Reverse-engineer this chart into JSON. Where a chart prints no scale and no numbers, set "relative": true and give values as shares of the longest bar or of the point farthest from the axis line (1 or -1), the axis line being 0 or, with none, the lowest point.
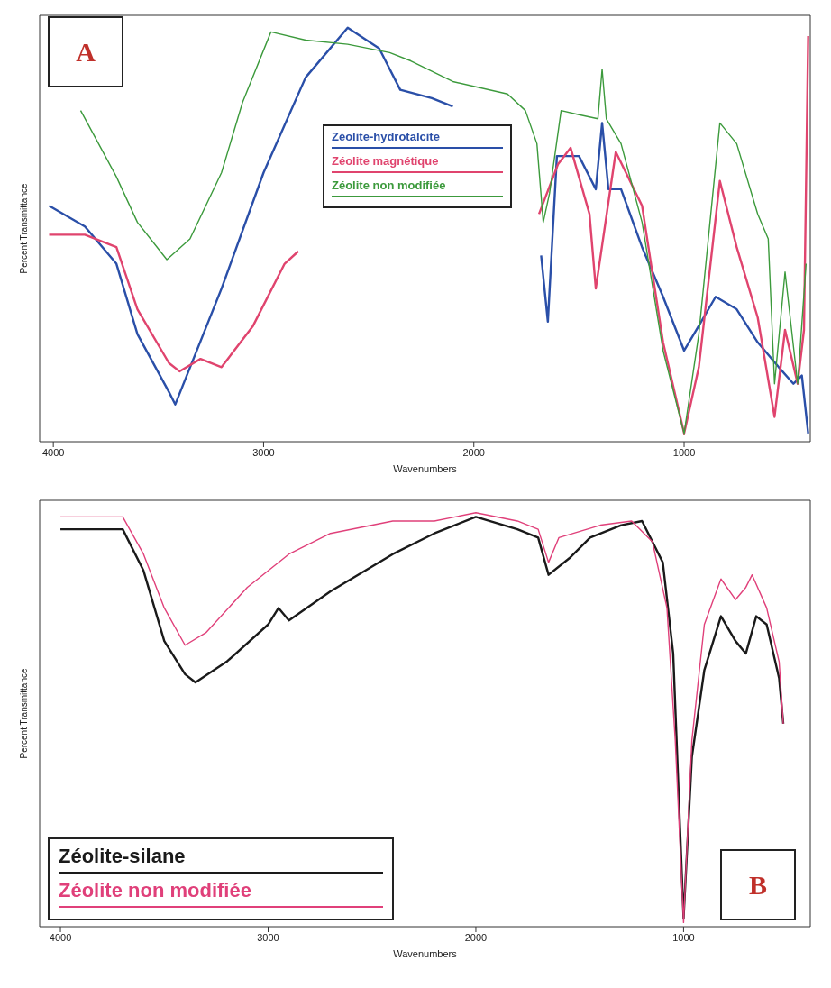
{
  "chart_data": [
    {
      "type": "line",
      "relative": true,
      "xlabel": "Wavenumbers",
      "ylabel": "Percent Transmittance",
      "xlim": [
        4065,
        400
      ],
      "xticks": [
        4000,
        3000,
        2000,
        1000
      ],
      "legend": "top",
      "annotations": [
        "A"
      ],
      "series": [
        {
          "name": "Zéolite-hydrotalcite",
          "color": "#2a4fa8",
          "x": [
            4020,
            3850,
            3700,
            3600,
            3450,
            3420,
            3200,
            3000,
            2800,
            2600,
            2450,
            2350,
            2200,
            2100,
            2000,
            1800,
            1680,
            1648,
            1605,
            1500,
            1420,
            1390,
            1360,
            1300,
            1200,
            1100,
            1000,
            930,
            850,
            750,
            650,
            550,
            480,
            440,
            410
          ],
          "values": [
            0.57,
            0.52,
            0.43,
            0.26,
            0.12,
            0.09,
            0.37,
            0.65,
            0.88,
            1,
            0.95,
            0.85,
            0.83,
            0.81,
            null,
            null,
            0.45,
            0.29,
            0.69,
            0.69,
            0.61,
            0.77,
            0.61,
            0.61,
            0.47,
            0.35,
            0.22,
            0.28,
            0.35,
            0.32,
            0.24,
            0.18,
            0.14,
            0.16,
            0.02
          ]
        },
        {
          "name": "Zéolite magnétique",
          "color": "#e0446e",
          "x": [
            4020,
            3850,
            3700,
            3600,
            3450,
            3400,
            3300,
            3200,
            3050,
            2900,
            2835,
            2500,
            2000,
            1690,
            1600,
            1540,
            1450,
            1420,
            1325,
            1200,
            1100,
            1000,
            930,
            830,
            750,
            650,
            570,
            520,
            460,
            430,
            410
          ],
          "values": [
            0.5,
            0.5,
            0.47,
            0.32,
            0.19,
            0.17,
            0.2,
            0.18,
            0.28,
            0.43,
            0.46,
            null,
            null,
            0.55,
            0.67,
            0.71,
            0.55,
            0.37,
            0.7,
            0.57,
            0.24,
            0.02,
            0.18,
            0.63,
            0.47,
            0.3,
            0.06,
            0.27,
            0.14,
            0.27,
            0.98
          ]
        },
        {
          "name": "Zéolite non modifiée",
          "color": "#3c9a3c",
          "x": [
            3870,
            3700,
            3600,
            3460,
            3350,
            3200,
            3100,
            2965,
            2800,
            2600,
            2400,
            2300,
            2100,
            1840,
            1755,
            1700,
            1670,
            1640,
            1585,
            1500,
            1410,
            1390,
            1370,
            1300,
            1200,
            1100,
            1000,
            930,
            830,
            750,
            650,
            600,
            570,
            520,
            460,
            420
          ],
          "values": [
            0.8,
            0.64,
            0.53,
            0.44,
            0.49,
            0.65,
            0.82,
            0.99,
            0.97,
            0.96,
            0.94,
            0.92,
            0.87,
            0.84,
            0.8,
            0.72,
            0.53,
            0.6,
            0.8,
            0.79,
            0.78,
            0.9,
            0.78,
            0.72,
            0.53,
            0.22,
            0.02,
            0.26,
            0.77,
            0.72,
            0.55,
            0.49,
            0.14,
            0.41,
            0.14,
            0.43
          ]
        }
      ]
    },
    {
      "type": "line",
      "relative": true,
      "xlabel": "Wavenumbers",
      "ylabel": "Percent Transmittance",
      "xlim": [
        4100,
        390
      ],
      "xticks": [
        4000,
        3000,
        2000,
        1000
      ],
      "legend": "bottom left",
      "annotations": [
        "B"
      ],
      "series": [
        {
          "name": "Zéolite-silane",
          "color": "#1a1a1a",
          "x": [
            4000,
            3700,
            3600,
            3500,
            3400,
            3350,
            3200,
            3000,
            2950,
            2900,
            2700,
            2400,
            2200,
            2000,
            1800,
            1700,
            1650,
            1550,
            1450,
            1300,
            1200,
            1100,
            1050,
            1000,
            960,
            900,
            820,
            750,
            700,
            650,
            600,
            540,
            520
          ],
          "values": [
            0.96,
            0.96,
            0.86,
            0.69,
            0.61,
            0.59,
            0.64,
            0.73,
            0.77,
            0.74,
            0.81,
            0.9,
            0.95,
            0.99,
            0.96,
            0.94,
            0.85,
            0.89,
            0.94,
            0.97,
            0.98,
            0.88,
            0.66,
            0.02,
            0.41,
            0.62,
            0.75,
            0.69,
            0.66,
            0.75,
            0.73,
            0.6,
            0.49
          ]
        },
        {
          "name": "Zéolite non modifiée",
          "color": "#e0407a",
          "x": [
            4000,
            3700,
            3600,
            3500,
            3400,
            3300,
            3100,
            2900,
            2700,
            2400,
            2200,
            2000,
            1800,
            1700,
            1650,
            1600,
            1400,
            1250,
            1150,
            1080,
            1040,
            1000,
            960,
            900,
            820,
            750,
            700,
            670,
            600,
            540,
            520
          ],
          "values": [
            0.99,
            0.99,
            0.9,
            0.77,
            0.68,
            0.71,
            0.82,
            0.9,
            0.95,
            0.98,
            0.98,
            1,
            0.98,
            0.96,
            0.88,
            0.94,
            0.97,
            0.98,
            0.93,
            0.77,
            0.45,
            0.01,
            0.45,
            0.73,
            0.84,
            0.79,
            0.82,
            0.85,
            0.77,
            0.64,
            0.49
          ]
        }
      ]
    }
  ]
}
